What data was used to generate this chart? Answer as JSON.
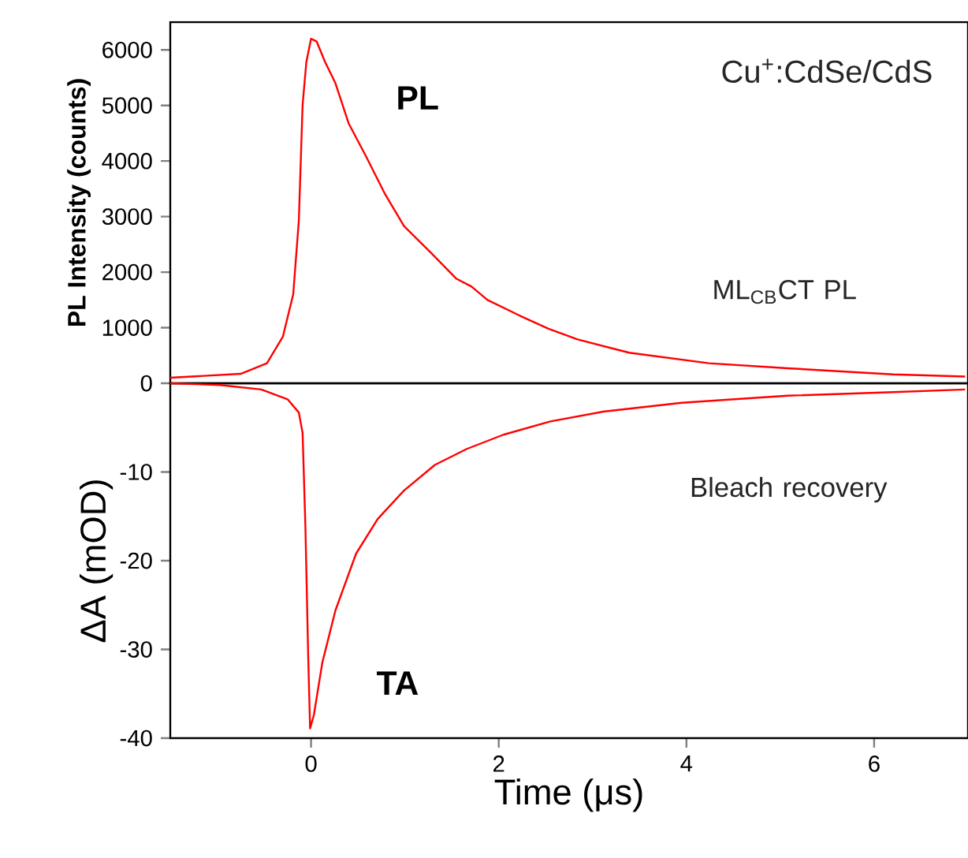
{
  "chart_data": [
    {
      "type": "line",
      "ylabel": "PL Intensity (counts)",
      "xlim": [
        -1.5,
        7
      ],
      "ylim": [
        0,
        6500
      ],
      "yticks": [
        0,
        1000,
        2000,
        3000,
        4000,
        5000,
        6000
      ],
      "tick_labels": "y",
      "annotations": [
        "Cu$^{+}$:CdSe/CdS",
        "ML$_{CB}$CT PL"
      ],
      "series": [
        {
          "name": "PL",
          "color": "#ff0000",
          "x": [
            -1.5,
            -0.75,
            -0.47,
            -0.3,
            -0.19,
            -0.13,
            -0.09,
            -0.05,
            0.0,
            0.06,
            0.15,
            0.26,
            0.4,
            0.59,
            0.79,
            0.99,
            1.27,
            1.55,
            1.71,
            1.88,
            2.22,
            2.53,
            2.84,
            3.39,
            4.24,
            5.08,
            6.2,
            6.97
          ],
          "values": [
            100,
            170,
            360,
            840,
            1600,
            2930,
            5010,
            5780,
            6200,
            6150,
            5780,
            5400,
            4680,
            4070,
            3400,
            2830,
            2360,
            1880,
            1740,
            1500,
            1220,
            980,
            790,
            550,
            360,
            270,
            160,
            120
          ]
        }
      ]
    },
    {
      "type": "line",
      "xlabel": "Time (μs)",
      "ylabel": "ΔA (mOD)",
      "xlim": [
        -1.5,
        7
      ],
      "ylim": [
        -40,
        0
      ],
      "xticks": [
        0,
        2,
        4,
        6
      ],
      "yticks": [
        -40,
        -30,
        -20,
        -10
      ],
      "annotations": [
        "Bleach recovery"
      ],
      "series": [
        {
          "name": "TA",
          "color": "#ff0000",
          "x": [
            -1.5,
            -0.97,
            -0.53,
            -0.25,
            -0.13,
            -0.09,
            -0.06,
            -0.03,
            -0.01,
            0.03,
            0.12,
            0.26,
            0.48,
            0.71,
            0.99,
            1.32,
            1.66,
            2.05,
            2.55,
            3.11,
            3.95,
            5.08,
            6.2,
            6.97
          ],
          "values": [
            0,
            -0.2,
            -0.7,
            -1.8,
            -3.3,
            -5.6,
            -16.2,
            -30.9,
            -38.9,
            -37.4,
            -31.5,
            -25.6,
            -19.2,
            -15.3,
            -12.1,
            -9.2,
            -7.4,
            -5.8,
            -4.3,
            -3.2,
            -2.2,
            -1.4,
            -1.0,
            -0.7
          ]
        }
      ]
    }
  ]
}
